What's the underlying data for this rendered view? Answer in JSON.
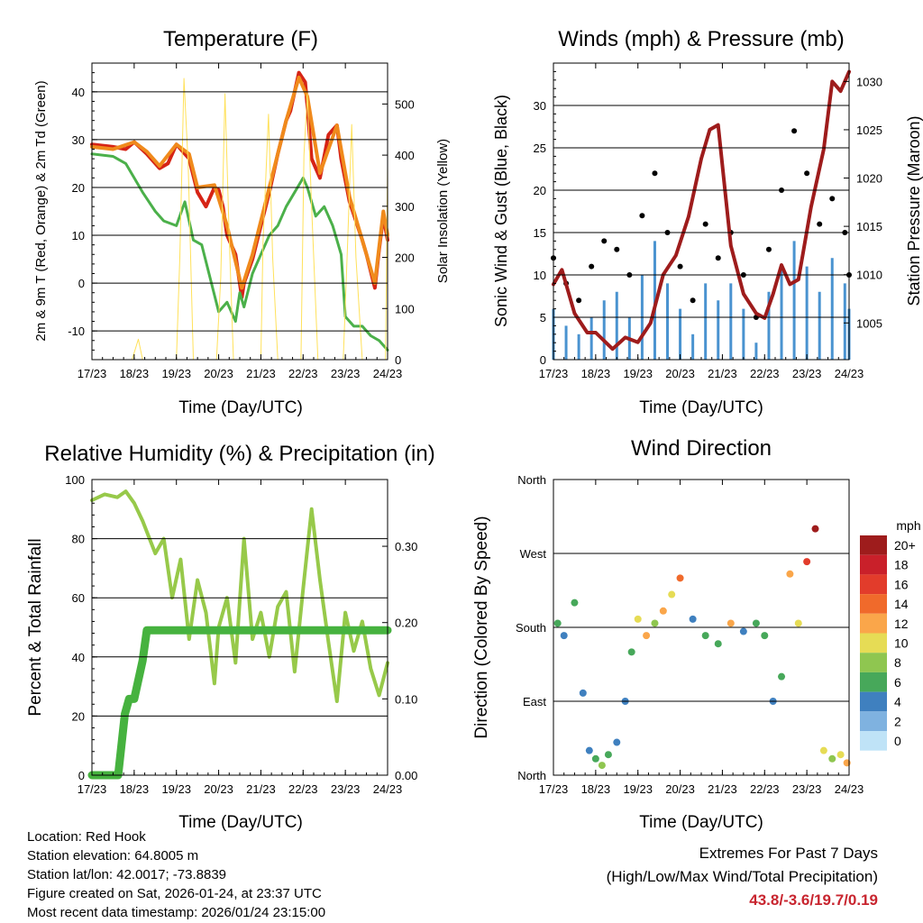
{
  "colors": {
    "temp2m": "#d62416",
    "temp9m": "#f08a1c",
    "dew": "#4bb04a",
    "solar": "#ffe15a",
    "sonic": "#4a93d0",
    "gust": "#000000",
    "pressure": "#9e1c1c",
    "rh": "#97c94a",
    "precip": "#46b23f",
    "grid": "#000000"
  },
  "chart_data": [
    {
      "id": "temperature",
      "type": "line",
      "title": "Temperature (F)",
      "xlabel": "Time (Day/UTC)",
      "ylabel": "2m & 9m T (Red, Orange) & 2m Td (Green)",
      "y2label": "Solar Insolation (Yellow)",
      "x_ticks": [
        "17/23",
        "18/23",
        "19/23",
        "20/23",
        "21/23",
        "22/23",
        "23/23",
        "24/23"
      ],
      "xlim": [
        0,
        7
      ],
      "ylim": [
        -16,
        46
      ],
      "y_ticks": [
        -10,
        0,
        10,
        20,
        30,
        40
      ],
      "y2lim": [
        0,
        580
      ],
      "y2_ticks": [
        0,
        100,
        200,
        300,
        400,
        500
      ],
      "series": [
        {
          "name": "2m T",
          "color": "temp2m",
          "x": [
            0,
            0.5,
            0.8,
            1.0,
            1.3,
            1.6,
            1.8,
            2.0,
            2.3,
            2.5,
            2.7,
            2.9,
            3.0,
            3.1,
            3.2,
            3.4,
            3.55,
            3.6,
            3.8,
            4.0,
            4.2,
            4.4,
            4.6,
            4.7,
            4.9,
            5.05,
            5.1,
            5.2,
            5.4,
            5.6,
            5.8,
            5.9,
            6.1,
            6.25,
            6.4,
            6.5,
            6.7,
            6.8,
            6.9,
            7.0
          ],
          "values": [
            29,
            28.5,
            28,
            29.5,
            27,
            24,
            25,
            29,
            26,
            19,
            16,
            20,
            19.5,
            16,
            10,
            6,
            -3,
            0,
            5,
            12,
            19,
            27,
            34,
            36,
            44,
            42,
            37,
            26,
            22,
            31,
            33,
            26,
            17,
            13,
            9,
            6,
            -1,
            7,
            14,
            9
          ]
        },
        {
          "name": "9m T",
          "color": "temp9m",
          "x": [
            0,
            0.5,
            1.0,
            1.3,
            1.6,
            2.0,
            2.3,
            2.5,
            2.9,
            3.2,
            3.55,
            3.8,
            4.2,
            4.6,
            4.9,
            5.1,
            5.4,
            5.8,
            6.1,
            6.5,
            6.7,
            6.9,
            7.0
          ],
          "values": [
            28.5,
            28,
            29.5,
            27.5,
            24.5,
            29,
            27,
            20,
            20.5,
            12,
            -1,
            6,
            20,
            34,
            43,
            39,
            23,
            33,
            18,
            6,
            0,
            15,
            10
          ]
        },
        {
          "name": "2m Td",
          "color": "dew",
          "x": [
            0,
            0.5,
            0.8,
            1.0,
            1.2,
            1.5,
            1.7,
            2.0,
            2.2,
            2.4,
            2.6,
            2.8,
            3.0,
            3.2,
            3.4,
            3.5,
            3.6,
            3.8,
            4.0,
            4.2,
            4.4,
            4.6,
            4.8,
            5.0,
            5.1,
            5.3,
            5.5,
            5.7,
            5.9,
            6.0,
            6.2,
            6.4,
            6.6,
            6.8,
            7.0
          ],
          "values": [
            27,
            26.5,
            25,
            22,
            19,
            15,
            13,
            12,
            17,
            9,
            8,
            1,
            -6,
            -4,
            -8,
            -2,
            -5,
            2,
            6,
            10,
            12,
            16,
            19,
            22,
            20,
            14,
            16,
            12,
            6,
            -7,
            -9,
            -9,
            -11,
            -12,
            -14
          ]
        },
        {
          "name": "Solar Insolation",
          "color": "solar",
          "axis": "y2",
          "x": [
            0.95,
            1.1,
            1.2,
            2.0,
            2.08,
            2.18,
            2.28,
            2.4,
            2.95,
            3.05,
            3.15,
            3.25,
            3.35,
            4.0,
            4.05,
            4.18,
            4.28,
            4.4,
            4.95,
            5.02,
            5.1,
            5.2,
            5.35,
            5.95,
            6.05,
            6.15,
            6.25,
            6.4,
            6.95,
            7.0
          ],
          "values": [
            0,
            40,
            0,
            0,
            200,
            550,
            380,
            0,
            0,
            160,
            520,
            240,
            0,
            0,
            230,
            480,
            200,
            0,
            0,
            400,
            520,
            300,
            0,
            0,
            220,
            460,
            200,
            0,
            0,
            380
          ]
        }
      ]
    },
    {
      "id": "winds",
      "type": "scatter",
      "title": "Winds (mph) & Pressure (mb)",
      "xlabel": "Time (Day/UTC)",
      "ylabel": "Sonic Wind & Gust (Blue, Black)",
      "y2label": "Station Pressure (Maroon)",
      "x_ticks": [
        "17/23",
        "18/23",
        "19/23",
        "20/23",
        "21/23",
        "22/23",
        "23/23",
        "24/23"
      ],
      "xlim": [
        0,
        7
      ],
      "ylim": [
        0,
        35
      ],
      "y_ticks": [
        0,
        5,
        10,
        15,
        20,
        25,
        30
      ],
      "y2lim": [
        1001.2,
        1031.9
      ],
      "y2_ticks": [
        1005,
        1010,
        1015,
        1020,
        1025,
        1030
      ],
      "series": [
        {
          "name": "Sonic Wind",
          "color": "sonic",
          "x": [
            0,
            0.3,
            0.6,
            0.9,
            1.2,
            1.5,
            1.8,
            2.1,
            2.4,
            2.7,
            3.0,
            3.3,
            3.6,
            3.9,
            4.2,
            4.5,
            4.8,
            5.1,
            5.4,
            5.7,
            6.0,
            6.3,
            6.6,
            6.9,
            7.0
          ],
          "values": [
            6,
            4,
            3,
            5,
            7,
            8,
            5,
            10,
            14,
            9,
            6,
            3,
            9,
            7,
            9,
            6,
            2,
            8,
            11,
            14,
            11,
            8,
            12,
            9,
            6
          ]
        },
        {
          "name": "Gust",
          "color": "gust",
          "x": [
            0,
            0.3,
            0.6,
            0.9,
            1.2,
            1.5,
            1.8,
            2.1,
            2.4,
            2.7,
            3.0,
            3.3,
            3.6,
            3.9,
            4.2,
            4.5,
            4.8,
            5.1,
            5.4,
            5.7,
            6.0,
            6.3,
            6.6,
            6.9,
            7.0
          ],
          "values": [
            12,
            9,
            7,
            11,
            14,
            13,
            10,
            17,
            22,
            15,
            11,
            7,
            16,
            12,
            15,
            10,
            5,
            13,
            20,
            27,
            22,
            16,
            19,
            15,
            10
          ]
        },
        {
          "name": "Station Pressure",
          "color": "pressure",
          "axis": "y2",
          "x": [
            0,
            0.2,
            0.5,
            0.8,
            1.0,
            1.4,
            1.7,
            2.0,
            2.3,
            2.6,
            2.9,
            3.2,
            3.5,
            3.7,
            3.9,
            4.2,
            4.5,
            4.8,
            5.0,
            5.2,
            5.4,
            5.6,
            5.8,
            6.1,
            6.4,
            6.6,
            6.8,
            7.0
          ],
          "values": [
            1009,
            1010.5,
            1006,
            1004,
            1004,
            1002.3,
            1003.5,
            1003,
            1005,
            1010,
            1012,
            1016,
            1022,
            1025,
            1025.5,
            1013,
            1008,
            1006,
            1005.5,
            1008,
            1011,
            1009,
            1009.5,
            1017,
            1023,
            1030,
            1029,
            1031
          ]
        }
      ]
    },
    {
      "id": "humidity",
      "type": "line",
      "title": "Relative Humidity (%) & Precipitation (in)",
      "xlabel": "Time (Day/UTC)",
      "ylabel": "Percent & Total Rainfall",
      "x_ticks": [
        "17/23",
        "18/23",
        "19/23",
        "20/23",
        "21/23",
        "22/23",
        "23/23",
        "24/23"
      ],
      "xlim": [
        0,
        7
      ],
      "ylim": [
        0,
        100
      ],
      "y_ticks": [
        0,
        20,
        40,
        60,
        80,
        100
      ],
      "y2lim": [
        0,
        0.3875
      ],
      "y2_ticks": [
        "0.00",
        "0.10",
        "0.20",
        "0.30"
      ],
      "series": [
        {
          "name": "Relative Humidity",
          "color": "rh",
          "x": [
            0,
            0.3,
            0.6,
            0.8,
            1.0,
            1.2,
            1.5,
            1.7,
            1.9,
            2.1,
            2.3,
            2.5,
            2.7,
            2.9,
            3.0,
            3.2,
            3.4,
            3.6,
            3.8,
            4.0,
            4.2,
            4.4,
            4.6,
            4.8,
            5.0,
            5.2,
            5.4,
            5.6,
            5.8,
            6.0,
            6.2,
            6.4,
            6.6,
            6.8,
            7.0
          ],
          "values": [
            93,
            95,
            94,
            96,
            92,
            86,
            75,
            80,
            60,
            73,
            46,
            66,
            55,
            31,
            50,
            60,
            38,
            80,
            46,
            55,
            40,
            57,
            62,
            35,
            63,
            90,
            66,
            45,
            25,
            55,
            42,
            52,
            36,
            27,
            38
          ]
        },
        {
          "name": "Total Precipitation",
          "color": "precip",
          "axis": "y2",
          "x": [
            0,
            0.5,
            0.62,
            0.78,
            0.88,
            1.0,
            1.2,
            1.3,
            7.0
          ],
          "values": [
            0,
            0,
            0,
            0.08,
            0.1,
            0.1,
            0.15,
            0.19,
            0.19
          ]
        }
      ]
    },
    {
      "id": "direction",
      "type": "scatter",
      "title": "Wind Direction",
      "xlabel": "Time (Day/UTC)",
      "ylabel": "Direction (Colored By Speed)",
      "x_ticks": [
        "17/23",
        "18/23",
        "19/23",
        "20/23",
        "21/23",
        "22/23",
        "23/23",
        "24/23"
      ],
      "xlim": [
        0,
        7
      ],
      "ylim": [
        0,
        360
      ],
      "y_ticks": [
        "North",
        "East",
        "South",
        "West",
        "North"
      ],
      "legend": {
        "title": "mph",
        "position": "right",
        "labels": [
          "20+",
          "18",
          "16",
          "14",
          "12",
          "10",
          "8",
          "6",
          "4",
          "2",
          "0"
        ],
        "colors": [
          "#9e1c1c",
          "#c9202a",
          "#e23c2b",
          "#f06a2b",
          "#faa64a",
          "#e6dc55",
          "#8fc650",
          "#47a85a",
          "#3f80bf",
          "#7fb2e0",
          "#bfe3f7"
        ]
      },
      "series": [
        {
          "name": "Direction",
          "x": [
            0.1,
            0.25,
            0.5,
            0.7,
            0.85,
            1.0,
            1.15,
            1.3,
            1.5,
            1.7,
            1.85,
            2.0,
            2.2,
            2.4,
            2.6,
            2.8,
            3.0,
            3.3,
            3.6,
            3.9,
            4.2,
            4.5,
            4.8,
            5.0,
            5.2,
            5.4,
            5.6,
            5.8,
            6.0,
            6.2,
            6.4,
            6.6,
            6.8,
            6.95
          ],
          "values": [
            185,
            170,
            210,
            100,
            30,
            20,
            12,
            25,
            40,
            90,
            150,
            190,
            170,
            185,
            200,
            220,
            240,
            190,
            170,
            160,
            185,
            175,
            185,
            170,
            90,
            120,
            245,
            185,
            260,
            300,
            30,
            20,
            25,
            15
          ],
          "speeds": [
            6,
            4,
            5,
            3,
            3,
            6,
            8,
            6,
            4,
            4,
            6,
            10,
            12,
            8,
            11,
            9,
            14,
            4,
            6,
            5,
            12,
            4,
            6,
            5,
            4,
            5,
            11,
            10,
            16,
            19,
            10,
            8,
            10,
            12
          ]
        }
      ]
    }
  ],
  "footer": {
    "location": "Location: Red Hook",
    "elevation": "Station elevation: 64.8005 m",
    "latlon": "Station lat/lon: 42.0017; -73.8839",
    "created": "Figure created on Sat, 2026-01-24, at 23:37 UTC",
    "recent": "Most recent data timestamp: 2026/01/24 23:15:00",
    "extremes_title": "Extremes For Past 7 Days",
    "extremes_sub": "(High/Low/Max Wind/Total Precipitation)",
    "extremes_values": "43.8/-3.6/19.7/0.19"
  }
}
